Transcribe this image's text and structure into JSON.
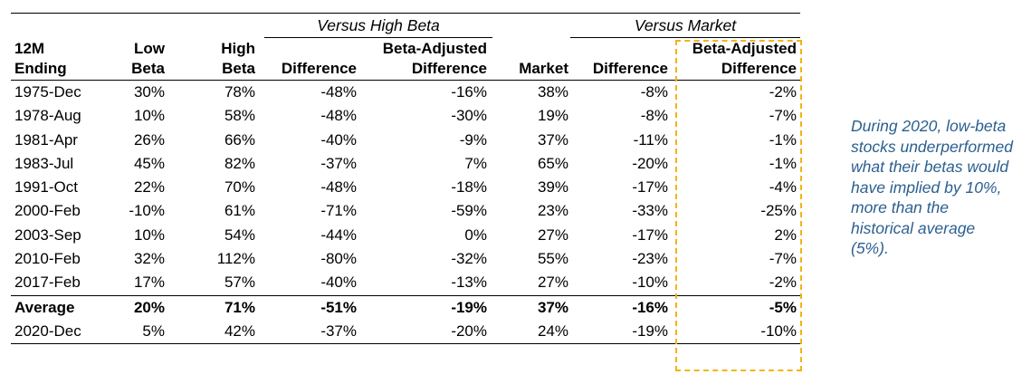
{
  "groups": {
    "high_beta": "Versus High Beta",
    "market": "Versus Market"
  },
  "headers": [
    [
      "12M",
      "Ending"
    ],
    [
      "Low",
      "Beta"
    ],
    [
      "High",
      "Beta"
    ],
    [
      "",
      "Difference"
    ],
    [
      "Beta-Adjusted",
      "Difference"
    ],
    [
      "",
      "Market"
    ],
    [
      "",
      "Difference"
    ],
    [
      "Beta-Adjusted",
      "Difference"
    ]
  ],
  "rows": [
    [
      "1975-Dec",
      "30%",
      "78%",
      "-48%",
      "-16%",
      "38%",
      "-8%",
      "-2%"
    ],
    [
      "1978-Aug",
      "10%",
      "58%",
      "-48%",
      "-30%",
      "19%",
      "-8%",
      "-7%"
    ],
    [
      "1981-Apr",
      "26%",
      "66%",
      "-40%",
      "-9%",
      "37%",
      "-11%",
      "-1%"
    ],
    [
      "1983-Jul",
      "45%",
      "82%",
      "-37%",
      "7%",
      "65%",
      "-20%",
      "-1%"
    ],
    [
      "1991-Oct",
      "22%",
      "70%",
      "-48%",
      "-18%",
      "39%",
      "-17%",
      "-4%"
    ],
    [
      "2000-Feb",
      "-10%",
      "61%",
      "-71%",
      "-59%",
      "23%",
      "-33%",
      "-25%"
    ],
    [
      "2003-Sep",
      "10%",
      "54%",
      "-44%",
      "0%",
      "27%",
      "-17%",
      "2%"
    ],
    [
      "2010-Feb",
      "32%",
      "112%",
      "-80%",
      "-32%",
      "55%",
      "-23%",
      "-7%"
    ],
    [
      "2017-Feb",
      "17%",
      "57%",
      "-40%",
      "-13%",
      "27%",
      "-10%",
      "-2%"
    ]
  ],
  "average": [
    "Average",
    "20%",
    "71%",
    "-51%",
    "-19%",
    "37%",
    "-16%",
    "-5%"
  ],
  "latest": [
    "2020-Dec",
    "5%",
    "42%",
    "-37%",
    "-20%",
    "24%",
    "-19%",
    "-10%"
  ],
  "note": "During 2020, low-beta stocks underperformed what their betas would have implied by 10%, more than the historical average (5%).",
  "highlight_color": "#f2b416",
  "note_color": "#2b5f8f"
}
